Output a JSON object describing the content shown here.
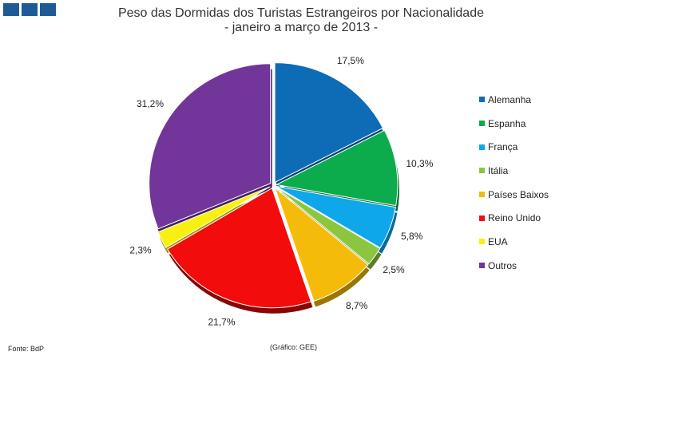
{
  "title": "Peso das Dormidas dos Turistas Estrangeiros por Nacionalidade",
  "subtitle": "- janeiro a março de 2013 -",
  "source": "Fonte: BdP",
  "credit": "(Gráfico: GEE)",
  "chart_data": {
    "type": "pie",
    "title": "Peso das Dormidas dos Turistas Estrangeiros por Nacionalidade",
    "subtitle": "- janeiro a março de 2013 -",
    "legend_position": "right",
    "unit": "%",
    "slices": [
      {
        "label": "Alemanha",
        "value": 17.5,
        "display": "17,5%",
        "color": "#0e6cb7",
        "shade": "#074477"
      },
      {
        "label": "Espanha",
        "value": 10.3,
        "display": "10,3%",
        "color": "#0cac4d",
        "shade": "#066a2f"
      },
      {
        "label": "França",
        "value": 5.8,
        "display": "5,8%",
        "color": "#0ea7ea",
        "shade": "#066c9a"
      },
      {
        "label": "Itália",
        "value": 2.5,
        "display": "2,5%",
        "color": "#8cc63f",
        "shade": "#587f25"
      },
      {
        "label": "Países Baixos",
        "value": 8.7,
        "display": "8,7%",
        "color": "#f4bb0a",
        "shade": "#9c7604"
      },
      {
        "label": "Reino Unido",
        "value": 21.7,
        "display": "21,7%",
        "color": "#f20c0c",
        "shade": "#8a0505"
      },
      {
        "label": "EUA",
        "value": 2.3,
        "display": "2,3%",
        "color": "#f7f010",
        "shade": "#9e9a06"
      },
      {
        "label": "Outros",
        "value": 31.2,
        "display": "31,2%",
        "color": "#72359a",
        "shade": "#44205e"
      }
    ]
  }
}
